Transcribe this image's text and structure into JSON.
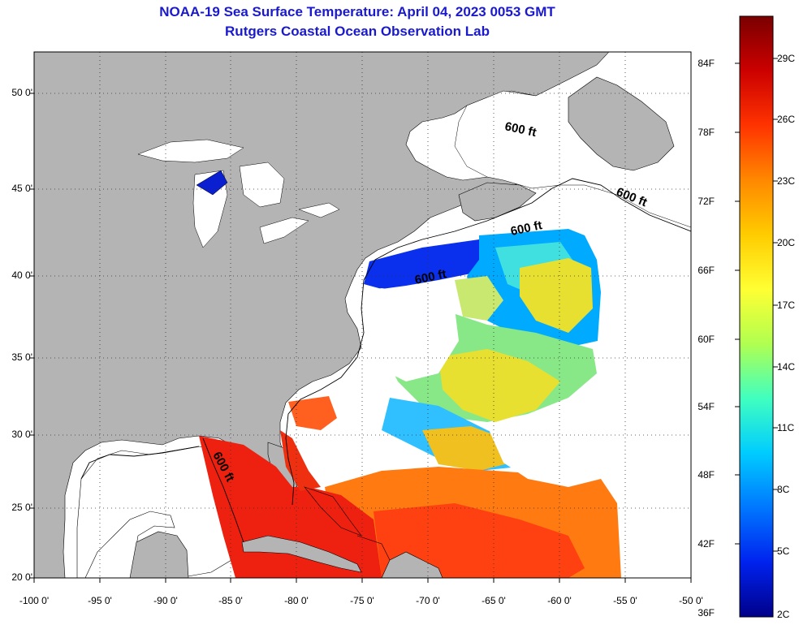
{
  "header": {
    "title": "NOAA-19 Sea Surface Temperature:  April 04, 2023 0053 GMT",
    "subtitle": "Rutgers Coastal Ocean Observation Lab"
  },
  "map": {
    "lat_ticks": [
      "50 0'",
      "45 0'",
      "40 0'",
      "35 0'",
      "30 0'",
      "25 0'",
      "20 0'"
    ],
    "lon_ticks": [
      "-100 0'",
      "-95 0'",
      "-90 0'",
      "-85 0'",
      "-80 0'",
      "-75 0'",
      "-70 0'",
      "-65 0'",
      "-60 0'",
      "-55 0'",
      "-50 0'"
    ],
    "contour_label": "600 ft",
    "land_color": "#b4b4b4",
    "cloud_color": "#ffffff"
  },
  "colorbar": {
    "f_labels": [
      "84F",
      "78F",
      "72F",
      "66F",
      "60F",
      "54F",
      "48F",
      "42F",
      "36F"
    ],
    "c_labels": [
      "29C",
      "26C",
      "23C",
      "20C",
      "17C",
      "14C",
      "11C",
      "8C",
      "5C",
      "2C"
    ],
    "colors": [
      "#7a0000",
      "#cc0000",
      "#ff3300",
      "#ff8800",
      "#ffcc00",
      "#ffff33",
      "#b0ff50",
      "#40ffc0",
      "#00ccff",
      "#0077ff",
      "#0022ee",
      "#00008a"
    ]
  }
}
